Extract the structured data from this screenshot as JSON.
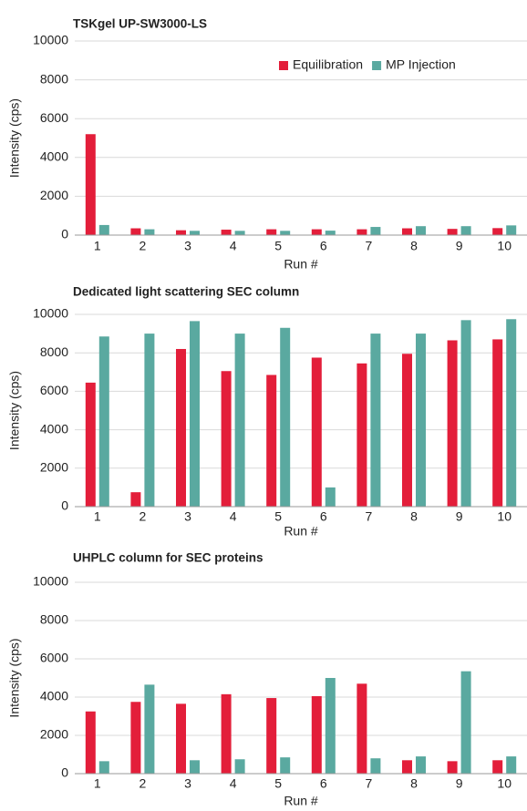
{
  "chart_data": [
    {
      "type": "bar",
      "title": "TSKgel UP-SW3000-LS",
      "x_label": "Run #",
      "y_label": "Intensity (cps)",
      "categories": [
        "1",
        "2",
        "3",
        "4",
        "5",
        "6",
        "7",
        "8",
        "9",
        "10"
      ],
      "series": [
        {
          "name": "Equilibration",
          "color": "#e31e3a",
          "values": [
            5200,
            350,
            250,
            280,
            300,
            300,
            300,
            350,
            320,
            360
          ]
        },
        {
          "name": "MP Injection",
          "color": "#5aa9a0",
          "values": [
            520,
            300,
            220,
            220,
            220,
            230,
            420,
            460,
            460,
            500
          ]
        }
      ],
      "ylim": [
        0,
        10000
      ],
      "yticks": [
        0,
        2000,
        4000,
        6000,
        8000,
        10000
      ],
      "grid": true,
      "legend": "top-right"
    },
    {
      "type": "bar",
      "title": "Dedicated light scattering SEC column",
      "x_label": "Run #",
      "y_label": "Intensity (cps)",
      "categories": [
        "1",
        "2",
        "3",
        "4",
        "5",
        "6",
        "7",
        "8",
        "9",
        "10"
      ],
      "series": [
        {
          "color": "#e31e3a",
          "values": [
            6450,
            750,
            8200,
            7050,
            6850,
            7750,
            7450,
            7950,
            8650,
            8700
          ]
        },
        {
          "color": "#5aa9a0",
          "values": [
            8850,
            9000,
            9650,
            9000,
            9300,
            1000,
            9000,
            9000,
            9700,
            9750
          ]
        }
      ],
      "ylim": [
        0,
        10000
      ],
      "yticks": [
        0,
        2000,
        4000,
        6000,
        8000,
        10000
      ],
      "grid": true
    },
    {
      "type": "bar",
      "title": "UHPLC column for SEC proteins",
      "x_label": "Run #",
      "y_label": "Intensity (cps)",
      "categories": [
        "1",
        "2",
        "3",
        "4",
        "5",
        "6",
        "7",
        "8",
        "9",
        "10"
      ],
      "series": [
        {
          "color": "#e31e3a",
          "values": [
            3250,
            3750,
            3650,
            4150,
            3950,
            4050,
            4700,
            700,
            650,
            700
          ]
        },
        {
          "color": "#5aa9a0",
          "values": [
            650,
            4650,
            700,
            750,
            850,
            5000,
            800,
            900,
            5350,
            900
          ]
        }
      ],
      "ylim": [
        0,
        10000
      ],
      "yticks": [
        0,
        2000,
        4000,
        6000,
        8000,
        10000
      ],
      "grid": true
    }
  ]
}
